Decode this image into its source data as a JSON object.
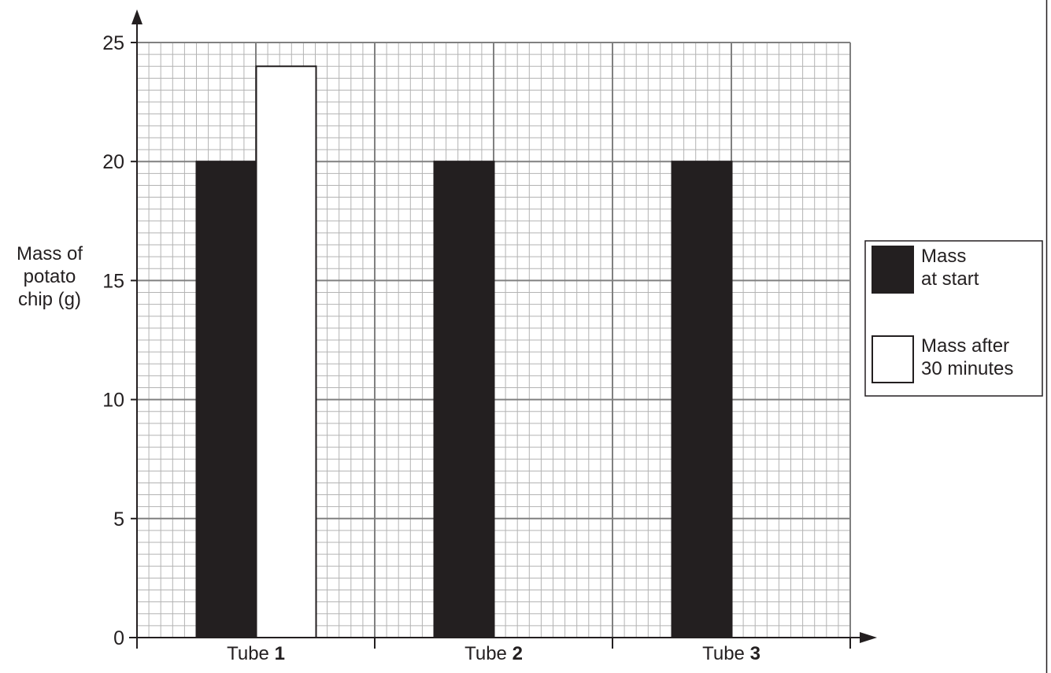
{
  "chart_data": {
    "type": "bar",
    "title": "",
    "xlabel": "",
    "ylabel_lines": [
      "Mass of",
      "potato",
      "chip (g)"
    ],
    "ylim": [
      0,
      25
    ],
    "yticks": [
      "0",
      "5",
      "10",
      "15",
      "20",
      "25"
    ],
    "grid": true,
    "legend_position": "right",
    "categories": [
      {
        "prefix": "Tube ",
        "number": "1"
      },
      {
        "prefix": "Tube ",
        "number": "2"
      },
      {
        "prefix": "Tube ",
        "number": "3"
      }
    ],
    "series": [
      {
        "key": "start",
        "label_lines": [
          "Mass",
          "at start"
        ],
        "fill": "#231f20",
        "values": [
          20,
          20,
          20
        ]
      },
      {
        "key": "after",
        "label_lines": [
          "Mass after",
          "30 minutes"
        ],
        "fill": "#ffffff",
        "values": [
          24,
          null,
          null
        ]
      }
    ]
  },
  "colors": {
    "ink": "#231f20",
    "grid_minor": "#b3b3b3",
    "grid_major": "#808080",
    "background": "#ffffff"
  }
}
